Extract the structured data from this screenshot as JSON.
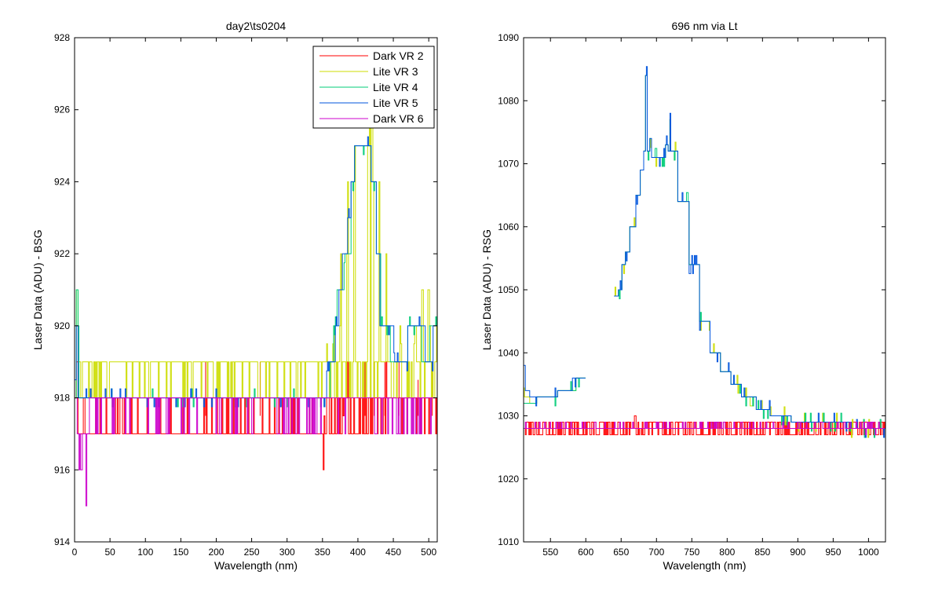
{
  "chart_data": [
    {
      "type": "line",
      "title": "day2\\ts0204",
      "xlabel": "Wavelength (nm)",
      "ylabel": "Laser Data (ADU) - BSG",
      "xlim": [
        0,
        512
      ],
      "ylim": [
        914,
        928
      ],
      "x_ticks": [
        0,
        50,
        100,
        150,
        200,
        250,
        300,
        350,
        400,
        450,
        500
      ],
      "y_ticks": [
        914,
        916,
        918,
        920,
        922,
        924,
        926,
        928
      ],
      "grid": false,
      "legend_position": "top-right",
      "legend": [
        "Dark VR 2",
        "Lite VR 3",
        "Lite VR 4",
        "Lite VR 5",
        "Dark VR 6"
      ],
      "series": [
        {
          "name": "Dark VR 2",
          "color": "#ff0000",
          "style": "noise",
          "base": 917.5,
          "low": 917,
          "high": 918,
          "points": [
            [
              0,
              918
            ],
            [
              2,
              919
            ],
            [
              4,
              917
            ],
            [
              350,
              917
            ],
            [
              350,
              916
            ],
            [
              351,
              917.5
            ],
            [
              380,
              918
            ],
            [
              385,
              919
            ],
            [
              440,
              918
            ],
            [
              512,
              918
            ]
          ],
          "spikes": [
            [
              185,
              919
            ],
            [
              262,
              919
            ],
            [
              410,
              919
            ],
            [
              423,
              919
            ],
            [
              438,
              919
            ],
            [
              458,
              919
            ],
            [
              485,
              918.5
            ],
            [
              505,
              919
            ]
          ]
        },
        {
          "name": "Lite VR 3",
          "color": "#ccdd00",
          "style": "noise",
          "base": 918.5,
          "low": 918,
          "high": 919,
          "points": [
            [
              0,
              918
            ],
            [
              2,
              921
            ],
            [
              4,
              919
            ],
            [
              300,
              919
            ],
            [
              350,
              919
            ],
            [
              355,
              919.5
            ],
            [
              365,
              920
            ],
            [
              375,
              922
            ],
            [
              385,
              924
            ],
            [
              395,
              925
            ],
            [
              415,
              925.5
            ],
            [
              420,
              924
            ],
            [
              430,
              922
            ],
            [
              440,
              920
            ],
            [
              460,
              919.5
            ],
            [
              480,
              920
            ],
            [
              490,
              921
            ],
            [
              500,
              920
            ],
            [
              512,
              920.5
            ]
          ]
        },
        {
          "name": "Lite VR 4",
          "color": "#00cc77",
          "style": "step",
          "points": [
            [
              0,
              918
            ],
            [
              2,
              921
            ],
            [
              4,
              920
            ],
            [
              6,
              918
            ],
            [
              355,
              918
            ],
            [
              360,
              919
            ],
            [
              365,
              920
            ],
            [
              370,
              921
            ],
            [
              380,
              922
            ],
            [
              390,
              924
            ],
            [
              395,
              925
            ],
            [
              412,
              925
            ],
            [
              418,
              924
            ],
            [
              425,
              922
            ],
            [
              432,
              920
            ],
            [
              445,
              919
            ],
            [
              470,
              920
            ],
            [
              490,
              919
            ],
            [
              500,
              920
            ],
            [
              512,
              919
            ]
          ]
        },
        {
          "name": "Lite VR 5",
          "color": "#0055dd",
          "style": "step",
          "points": [
            [
              0,
              918.5
            ],
            [
              2,
              920
            ],
            [
              4,
              918
            ],
            [
              350,
              918
            ],
            [
              355,
              919
            ],
            [
              368,
              920
            ],
            [
              372,
              921
            ],
            [
              378,
              922
            ],
            [
              385,
              923
            ],
            [
              390,
              924
            ],
            [
              395,
              925
            ],
            [
              412,
              925
            ],
            [
              418,
              924
            ],
            [
              425,
              922
            ],
            [
              430,
              920
            ],
            [
              450,
              919
            ],
            [
              470,
              920
            ],
            [
              495,
              919
            ],
            [
              505,
              920
            ],
            [
              512,
              920.5
            ]
          ]
        },
        {
          "name": "Dark VR 6",
          "color": "#cc00cc",
          "style": "noise",
          "base": 917.5,
          "low": 917,
          "high": 918,
          "points": [
            [
              0,
              918
            ],
            [
              3,
              917
            ],
            [
              5,
              916
            ],
            [
              10,
              917
            ],
            [
              15,
              915
            ],
            [
              17,
              917
            ],
            [
              20,
              918
            ],
            [
              512,
              918
            ]
          ]
        }
      ]
    },
    {
      "type": "line",
      "title": "696 nm via Lt",
      "xlabel": "Wavelength (nm)",
      "ylabel": "Laser Data (ADU) - RSG",
      "xlim": [
        512,
        1024
      ],
      "ylim": [
        1010,
        1090
      ],
      "x_ticks": [
        550,
        600,
        650,
        700,
        750,
        800,
        850,
        900,
        950,
        1000
      ],
      "y_ticks": [
        1010,
        1020,
        1030,
        1040,
        1050,
        1060,
        1070,
        1080,
        1090
      ],
      "grid": false,
      "series": [
        {
          "color": "#ff0000",
          "style": "noise",
          "base": 1028,
          "low": 1027,
          "high": 1029,
          "points": [
            [
              512,
              1028
            ],
            [
              665,
              1028
            ],
            [
              668,
              1030
            ],
            [
              670,
              1027
            ],
            [
              676,
              1028
            ],
            [
              1024,
              1028
            ]
          ]
        },
        {
          "color": "#ccdd00",
          "style": "step",
          "points": [
            [
              512,
              1033
            ],
            [
              520,
              1032
            ],
            [
              530,
              1033
            ],
            [
              560,
              1034
            ],
            [
              585,
              1036
            ],
            [
              600,
              1040
            ]
          ]
        },
        {
          "color": "#00cc77",
          "style": "step",
          "points": [
            [
              512,
              1032
            ],
            [
              520,
              1032
            ],
            [
              530,
              1033
            ],
            [
              560,
              1034
            ],
            [
              585,
              1036
            ],
            [
              600,
              1040
            ]
          ]
        },
        {
          "color": "#0055dd",
          "style": "step",
          "points": [
            [
              512,
              1038
            ],
            [
              514,
              1034
            ],
            [
              520,
              1033
            ],
            [
              530,
              1033
            ],
            [
              560,
              1034
            ],
            [
              580,
              1036
            ],
            [
              600,
              1040
            ]
          ]
        },
        {
          "color": "#ccdd00",
          "style": "step",
          "points": [
            [
              640,
              1049
            ],
            [
              645,
              1050
            ],
            [
              650,
              1054
            ],
            [
              655,
              1056
            ],
            [
              662,
              1060
            ],
            [
              670,
              1065
            ],
            [
              676,
              1069
            ],
            [
              681,
              1072
            ],
            [
              684,
              1084
            ],
            [
              686,
              1072
            ],
            [
              690,
              1074
            ],
            [
              692,
              1071
            ],
            [
              710,
              1071
            ],
            [
              712,
              1073
            ],
            [
              716,
              1072
            ],
            [
              718,
              1077
            ],
            [
              720,
              1072
            ],
            [
              730,
              1064
            ],
            [
              745,
              1054
            ],
            [
              760,
              1045
            ],
            [
              775,
              1040
            ],
            [
              790,
              1037
            ],
            [
              805,
              1035
            ],
            [
              820,
              1033
            ],
            [
              840,
              1031
            ],
            [
              860,
              1030
            ],
            [
              890,
              1029
            ],
            [
              940,
              1029
            ],
            [
              975,
              1028
            ],
            [
              1024,
              1028
            ]
          ]
        },
        {
          "color": "#00cc77",
          "style": "step",
          "points": [
            [
              640,
              1049
            ],
            [
              645,
              1050
            ],
            [
              650,
              1054
            ],
            [
              655,
              1056
            ],
            [
              662,
              1060
            ],
            [
              670,
              1065
            ],
            [
              676,
              1069
            ],
            [
              681,
              1072
            ],
            [
              684,
              1084
            ],
            [
              686,
              1072
            ],
            [
              690,
              1074
            ],
            [
              692,
              1071
            ],
            [
              710,
              1071
            ],
            [
              712,
              1073
            ],
            [
              716,
              1072
            ],
            [
              718,
              1077
            ],
            [
              720,
              1072
            ],
            [
              730,
              1064
            ],
            [
              745,
              1054
            ],
            [
              760,
              1045
            ],
            [
              775,
              1040
            ],
            [
              790,
              1037
            ],
            [
              805,
              1035
            ],
            [
              820,
              1033
            ],
            [
              840,
              1031
            ],
            [
              860,
              1030
            ],
            [
              890,
              1029
            ],
            [
              940,
              1029
            ],
            [
              975,
              1028
            ],
            [
              1024,
              1028
            ]
          ]
        },
        {
          "color": "#0055dd",
          "style": "step",
          "points": [
            [
              640,
              1049
            ],
            [
              645,
              1050
            ],
            [
              650,
              1054
            ],
            [
              655,
              1056
            ],
            [
              662,
              1060
            ],
            [
              670,
              1065
            ],
            [
              676,
              1069
            ],
            [
              681,
              1072
            ],
            [
              684,
              1084
            ],
            [
              686,
              1072
            ],
            [
              690,
              1074
            ],
            [
              692,
              1071
            ],
            [
              710,
              1071
            ],
            [
              712,
              1073
            ],
            [
              716,
              1072
            ],
            [
              718,
              1078
            ],
            [
              720,
              1072
            ],
            [
              730,
              1064
            ],
            [
              745,
              1054
            ],
            [
              760,
              1045
            ],
            [
              775,
              1040
            ],
            [
              790,
              1037
            ],
            [
              805,
              1035
            ],
            [
              820,
              1033
            ],
            [
              840,
              1031
            ],
            [
              860,
              1030
            ],
            [
              890,
              1029
            ],
            [
              940,
              1029
            ],
            [
              975,
              1028
            ],
            [
              1024,
              1028
            ]
          ]
        },
        {
          "color": "#cc00cc",
          "style": "noise",
          "base": 1028,
          "low": 1028,
          "high": 1029,
          "points": [
            [
              512,
              1028
            ],
            [
              990,
              1028
            ],
            [
              995,
              1027
            ],
            [
              1010,
              1028
            ],
            [
              1024,
              1028
            ]
          ]
        }
      ]
    }
  ]
}
